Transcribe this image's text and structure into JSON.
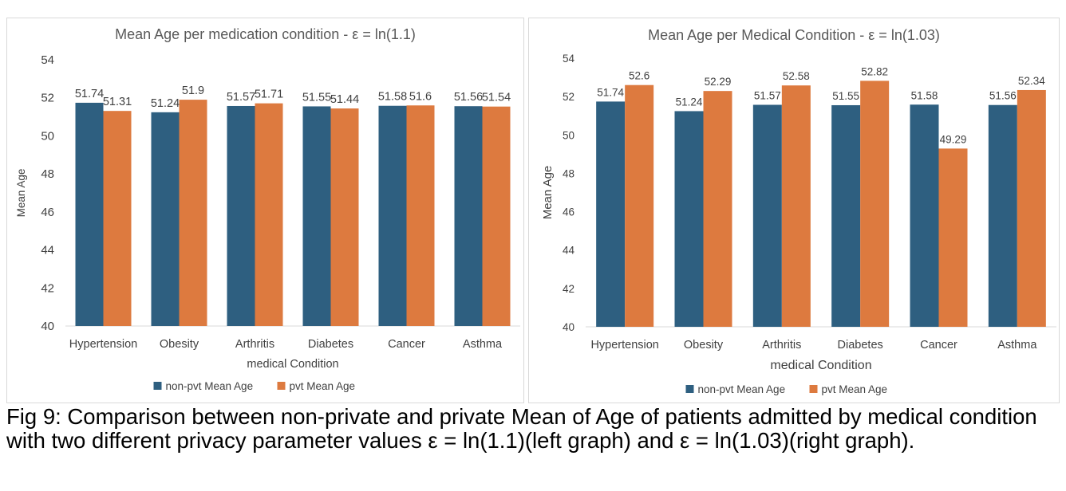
{
  "caption": "Fig 9: Comparison between non-private and private Mean of Age of patients admitted by medical condition with two different privacy parameter values ε = ln(1.1)(left graph) and ε = ln(1.03)(right graph).",
  "colors": {
    "non_pvt": "#2e5f80",
    "pvt": "#dd7a3f",
    "grid": "#d9d9d9",
    "text": "#404040",
    "title": "#595959"
  },
  "chart_data": [
    {
      "type": "bar",
      "title": "Mean Age per medication condition -  ε = ln(1.1)",
      "xlabel": "medical Condition",
      "ylabel": "Mean Age",
      "categories": [
        "Hypertension",
        "Obesity",
        "Arthritis",
        "Diabetes",
        "Cancer",
        "Asthma"
      ],
      "series": [
        {
          "name": "non-pvt Mean Age",
          "values": [
            51.74,
            51.24,
            51.57,
            51.55,
            51.58,
            51.56
          ]
        },
        {
          "name": "pvt Mean Age",
          "values": [
            51.31,
            51.9,
            51.71,
            51.44,
            51.6,
            51.54
          ]
        }
      ],
      "ylim": [
        40,
        54
      ],
      "yticks": [
        40,
        42,
        44,
        46,
        48,
        50,
        52,
        54
      ],
      "grid": false,
      "legend": "bottom"
    },
    {
      "type": "bar",
      "title": "Mean Age per Medical Condition - ε =  ln(1.03)",
      "xlabel": "medical Condition",
      "ylabel": "Mean Age",
      "categories": [
        "Hypertension",
        "Obesity",
        "Arthritis",
        "Diabetes",
        "Cancer",
        "Asthma"
      ],
      "series": [
        {
          "name": "non-pvt Mean Age",
          "values": [
            51.74,
            51.24,
            51.57,
            51.55,
            51.58,
            51.56
          ]
        },
        {
          "name": "pvt Mean Age",
          "values": [
            52.6,
            52.29,
            52.58,
            52.82,
            49.29,
            52.34
          ]
        }
      ],
      "ylim": [
        40,
        54
      ],
      "yticks": [
        40,
        42,
        44,
        46,
        48,
        50,
        52,
        54
      ],
      "grid": false,
      "legend": "bottom"
    }
  ]
}
